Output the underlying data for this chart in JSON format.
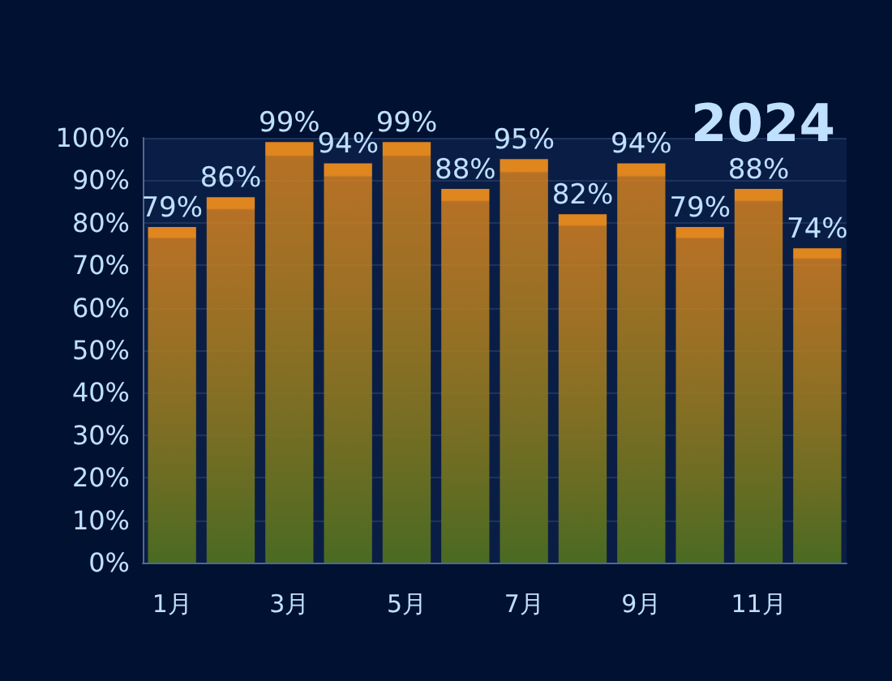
{
  "chart_data": {
    "type": "bar",
    "title": "2024",
    "categories": [
      "1月",
      null,
      "3月",
      null,
      "5月",
      null,
      "7月",
      null,
      "9月",
      null,
      "11月",
      null
    ],
    "values": [
      79,
      86,
      99,
      94,
      99,
      88,
      95,
      82,
      94,
      79,
      88,
      74
    ],
    "value_labels": [
      "79%",
      "86%",
      "99%",
      "94%",
      "99%",
      "88%",
      "95%",
      "82%",
      "94%",
      "79%",
      "88%",
      "74%"
    ],
    "color": "#e0861e",
    "ylim": [
      0,
      100
    ],
    "yticks": [
      {
        "value": 0,
        "label": "0%"
      },
      {
        "value": 10,
        "label": "10%"
      },
      {
        "value": 20,
        "label": "20%"
      },
      {
        "value": 30,
        "label": "30%"
      },
      {
        "value": 40,
        "label": "40%"
      },
      {
        "value": 50,
        "label": "50%"
      },
      {
        "value": 60,
        "label": "60%"
      },
      {
        "value": 70,
        "label": "70%"
      },
      {
        "value": 80,
        "label": "80%"
      },
      {
        "value": 90,
        "label": "90%"
      },
      {
        "value": 100,
        "label": "100%"
      }
    ],
    "grid": "y"
  }
}
